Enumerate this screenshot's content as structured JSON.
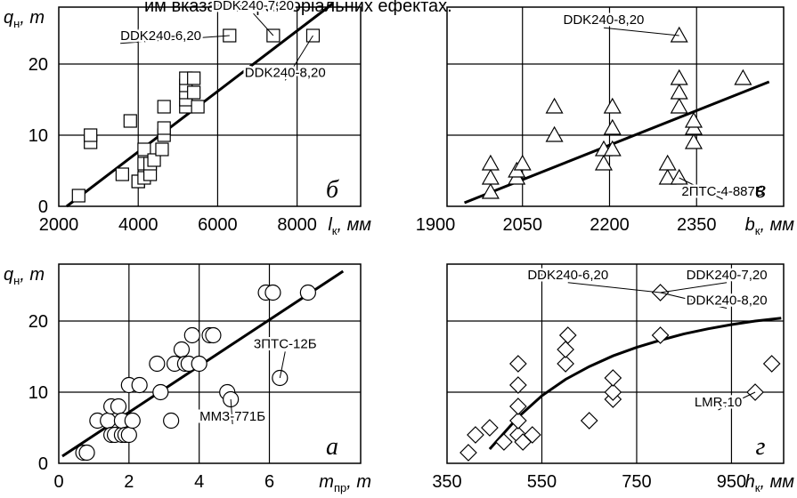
{
  "header_fragment": "им вказаних факторіальних ефектах.",
  "chart_data": [
    {
      "id": "b",
      "type": "scatter",
      "panel_letter": "б",
      "ylabel_main": "q",
      "ylabel_sub": "н",
      "ylabel_unit": ", т",
      "xlabel_main": "l",
      "xlabel_sub": "к",
      "xlabel_unit": ", мм",
      "xlim": [
        2000,
        9600
      ],
      "ylim": [
        0,
        28
      ],
      "xticks": [
        2000,
        4000,
        6000,
        8000
      ],
      "xtick_labels": [
        "2000",
        "4000",
        "6000",
        "8000"
      ],
      "yticks": [
        0,
        10,
        20
      ],
      "ytick_labels": [
        "0",
        "10",
        "20"
      ],
      "marker": "square",
      "points": [
        [
          2500,
          1.5
        ],
        [
          2800,
          9
        ],
        [
          2800,
          10
        ],
        [
          3600,
          4.5
        ],
        [
          3800,
          12
        ],
        [
          4000,
          3.5
        ],
        [
          4000,
          3.5
        ],
        [
          4150,
          4
        ],
        [
          4150,
          6
        ],
        [
          4150,
          8
        ],
        [
          4300,
          4.5
        ],
        [
          4300,
          6
        ],
        [
          4400,
          6.5
        ],
        [
          4600,
          8
        ],
        [
          4650,
          10
        ],
        [
          4650,
          11
        ],
        [
          4650,
          14
        ],
        [
          5200,
          14
        ],
        [
          5200,
          15
        ],
        [
          5200,
          16
        ],
        [
          5200,
          17
        ],
        [
          5200,
          18
        ],
        [
          5400,
          16
        ],
        [
          5400,
          18
        ],
        [
          5500,
          14
        ],
        [
          6300,
          24
        ],
        [
          7400,
          24
        ],
        [
          8400,
          24
        ]
      ],
      "trend": [
        [
          2200,
          0
        ],
        [
          8900,
          28.5
        ]
      ],
      "annotations": [
        {
          "text": "DDK240-7,20",
          "x": 7400,
          "y": 24,
          "lx": 6900,
          "ly": 27.6,
          "align": "middle"
        },
        {
          "text": "DDK240-6,20",
          "x": 6300,
          "y": 24,
          "lx": 3550,
          "ly": 23.4,
          "align": "start"
        },
        {
          "text": "DDK240-8,20",
          "x": 8400,
          "y": 24,
          "lx": 7700,
          "ly": 18.2,
          "align": "middle"
        }
      ]
    },
    {
      "id": "v",
      "type": "scatter",
      "panel_letter": "в",
      "ylabel_main": "",
      "ylabel_sub": "",
      "ylabel_unit": "",
      "xlabel_main": "b",
      "xlabel_sub": "к",
      "xlabel_unit": ", мм",
      "xlim": [
        1920,
        2500
      ],
      "ylim": [
        0,
        28
      ],
      "xticks": [
        1900,
        2050,
        2200,
        2350
      ],
      "xtick_labels": [
        "1900",
        "2050",
        "2200",
        "2350"
      ],
      "yticks": [
        0,
        10,
        20
      ],
      "ytick_labels": [
        "",
        "",
        ""
      ],
      "marker": "triangle",
      "points": [
        [
          1995,
          2
        ],
        [
          1995,
          4
        ],
        [
          1995,
          6
        ],
        [
          2040,
          4
        ],
        [
          2040,
          5
        ],
        [
          2050,
          6
        ],
        [
          2105,
          10
        ],
        [
          2105,
          14
        ],
        [
          2190,
          6
        ],
        [
          2190,
          8
        ],
        [
          2205,
          8
        ],
        [
          2205,
          11
        ],
        [
          2205,
          14
        ],
        [
          2300,
          4
        ],
        [
          2300,
          6
        ],
        [
          2320,
          4
        ],
        [
          2320,
          14
        ],
        [
          2320,
          16
        ],
        [
          2320,
          18
        ],
        [
          2320,
          24
        ],
        [
          2345,
          9
        ],
        [
          2345,
          11
        ],
        [
          2345,
          12
        ],
        [
          2430,
          18
        ]
      ],
      "trend": [
        [
          1950,
          0.5
        ],
        [
          2475,
          17.5
        ]
      ],
      "annotations": [
        {
          "text": "DDK240-8,20",
          "x": 2320,
          "y": 24,
          "lx": 2190,
          "ly": 25.6,
          "align": "middle"
        },
        {
          "text": "2ПТС-4-887Б",
          "x": 2320,
          "y": 4,
          "lx": 2395,
          "ly": 1.5,
          "align": "middle"
        }
      ]
    },
    {
      "id": "a",
      "type": "scatter",
      "panel_letter": "а",
      "ylabel_main": "q",
      "ylabel_sub": "н",
      "ylabel_unit": ", т",
      "xlabel_main": "m",
      "xlabel_sub": "пр",
      "xlabel_unit": ", т",
      "xlim": [
        0,
        8.6
      ],
      "ylim": [
        0,
        28
      ],
      "xticks": [
        0,
        2,
        4,
        6
      ],
      "xtick_labels": [
        "0",
        "2",
        "4",
        "6"
      ],
      "yticks": [
        0,
        10,
        20
      ],
      "ytick_labels": [
        "0",
        "10",
        "20"
      ],
      "marker": "circle",
      "points": [
        [
          0.7,
          1.5
        ],
        [
          0.8,
          1.5
        ],
        [
          1.1,
          6
        ],
        [
          1.4,
          6
        ],
        [
          1.5,
          4
        ],
        [
          1.5,
          8
        ],
        [
          1.6,
          4
        ],
        [
          1.7,
          8
        ],
        [
          1.8,
          4
        ],
        [
          1.8,
          6
        ],
        [
          1.9,
          4
        ],
        [
          2.0,
          11
        ],
        [
          2.0,
          4
        ],
        [
          2.1,
          6
        ],
        [
          2.3,
          11
        ],
        [
          2.8,
          14
        ],
        [
          2.9,
          10
        ],
        [
          3.2,
          6
        ],
        [
          3.3,
          14
        ],
        [
          3.5,
          16
        ],
        [
          3.6,
          14
        ],
        [
          3.7,
          14
        ],
        [
          3.8,
          18
        ],
        [
          4.0,
          14
        ],
        [
          4.3,
          18
        ],
        [
          4.4,
          18
        ],
        [
          4.8,
          10
        ],
        [
          4.9,
          9
        ],
        [
          5.9,
          24
        ],
        [
          6.1,
          24
        ],
        [
          6.3,
          12
        ],
        [
          7.1,
          24
        ]
      ],
      "trend": [
        [
          0.1,
          1
        ],
        [
          8.1,
          27
        ]
      ],
      "annotations": [
        {
          "text": "3ПТС-12Б",
          "x": 6.3,
          "y": 12,
          "lx": 6.45,
          "ly": 16.2,
          "align": "middle"
        },
        {
          "text": "ММЗ-771Б",
          "x": 4.9,
          "y": 9,
          "lx": 4.95,
          "ly": 6.0,
          "align": "middle"
        }
      ]
    },
    {
      "id": "g",
      "type": "scatter",
      "panel_letter": "г",
      "ylabel_main": "",
      "ylabel_sub": "",
      "ylabel_unit": "",
      "xlabel_main": "h",
      "xlabel_sub": "к",
      "xlabel_unit": ", мм",
      "xlim": [
        350,
        1060
      ],
      "ylim": [
        0,
        28
      ],
      "xticks": [
        350,
        550,
        750,
        950
      ],
      "xtick_labels": [
        "350",
        "550",
        "750",
        "950"
      ],
      "yticks": [
        0,
        10,
        20
      ],
      "ytick_labels": [
        "",
        "",
        ""
      ],
      "marker": "diamond",
      "points": [
        [
          395,
          1.5
        ],
        [
          410,
          4
        ],
        [
          440,
          5
        ],
        [
          470,
          3
        ],
        [
          500,
          4
        ],
        [
          500,
          6
        ],
        [
          500,
          8
        ],
        [
          500,
          11
        ],
        [
          500,
          14
        ],
        [
          510,
          3
        ],
        [
          530,
          4
        ],
        [
          600,
          14
        ],
        [
          600,
          16
        ],
        [
          605,
          18
        ],
        [
          650,
          6
        ],
        [
          700,
          9
        ],
        [
          700,
          10
        ],
        [
          700,
          12
        ],
        [
          800,
          18
        ],
        [
          800,
          24
        ],
        [
          1000,
          10
        ],
        [
          1035,
          14
        ]
      ],
      "trend_curve": [
        [
          440,
          2
        ],
        [
          500,
          6.5
        ],
        [
          550,
          9.5
        ],
        [
          600,
          11.8
        ],
        [
          650,
          13.6
        ],
        [
          700,
          15.1
        ],
        [
          750,
          16.3
        ],
        [
          800,
          17.3
        ],
        [
          850,
          18.2
        ],
        [
          900,
          18.9
        ],
        [
          950,
          19.5
        ],
        [
          1000,
          20
        ],
        [
          1055,
          20.4
        ]
      ],
      "annotations": [
        {
          "text": "DDK240-6,20",
          "x": 800,
          "y": 24,
          "lx": 605,
          "ly": 25.9,
          "align": "middle"
        },
        {
          "text": "DDK240-7,20",
          "x": 800,
          "y": 24,
          "lx": 940,
          "ly": 25.9,
          "align": "middle"
        },
        {
          "text": "DDK240-8,20",
          "x": 800,
          "y": 24,
          "lx": 940,
          "ly": 22.3,
          "align": "middle"
        },
        {
          "text": "LMR-10",
          "x": 1000,
          "y": 10,
          "lx": 922,
          "ly": 8.0,
          "align": "middle"
        }
      ]
    }
  ]
}
